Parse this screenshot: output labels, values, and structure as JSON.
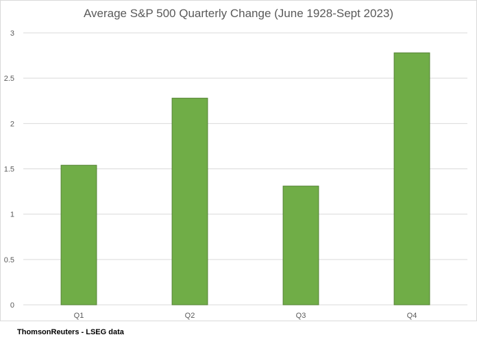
{
  "chart_data": {
    "type": "bar",
    "title": "Average S&P 500 Quarterly Change (June 1928-Sept 2023)",
    "categories": [
      "Q1",
      "Q2",
      "Q3",
      "Q4"
    ],
    "values": [
      1.54,
      2.28,
      1.31,
      2.78
    ],
    "xlabel": "",
    "ylabel": "",
    "ylim": [
      0,
      3
    ],
    "yticks": [
      "0",
      "0.5",
      "1",
      "1.5",
      "2",
      "2.5",
      "3"
    ],
    "grid": true,
    "legend": "none",
    "bar_color": "#70ad47",
    "bar_edge_color": "#548235"
  },
  "source_note": "ThomsonReuters - LSEG data"
}
